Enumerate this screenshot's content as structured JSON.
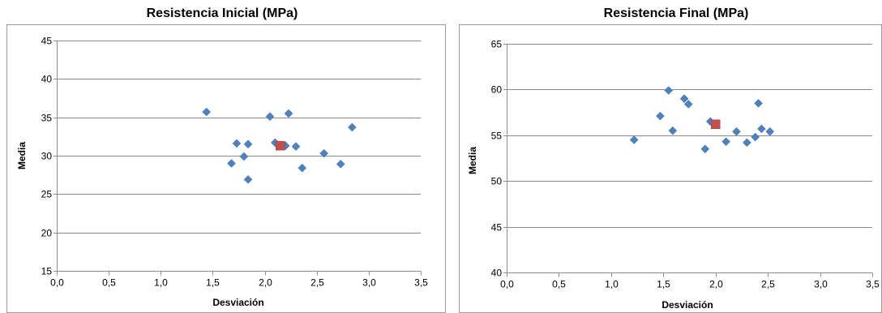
{
  "chart_data": [
    {
      "type": "scatter",
      "title": "Resistencia Inicial (MPa)",
      "xlabel": "Desviación",
      "ylabel": "Media",
      "xlim": [
        0,
        3.5
      ],
      "ylim": [
        15,
        45
      ],
      "xticks": [
        0,
        0.5,
        1.0,
        1.5,
        2.0,
        2.5,
        3.0,
        3.5
      ],
      "yticks": [
        15,
        20,
        25,
        30,
        35,
        40,
        45
      ],
      "xtick_labels": [
        "0,0",
        "0,5",
        "1,0",
        "1,5",
        "2,0",
        "2,5",
        "3,0",
        "3,5"
      ],
      "ytick_labels": [
        "15",
        "20",
        "25",
        "30",
        "35",
        "40",
        "45"
      ],
      "grid": true,
      "series": [
        {
          "marker": "diamond",
          "color": "#4f81bd",
          "points": [
            [
              1.44,
              35.7
            ],
            [
              1.73,
              31.6
            ],
            [
              1.84,
              31.5
            ],
            [
              1.68,
              29.0
            ],
            [
              1.8,
              29.9
            ],
            [
              1.84,
              26.9
            ],
            [
              2.05,
              35.1
            ],
            [
              2.1,
              31.7
            ],
            [
              2.23,
              35.5
            ],
            [
              2.2,
              31.3
            ],
            [
              2.3,
              31.2
            ],
            [
              2.36,
              28.4
            ],
            [
              2.57,
              30.3
            ],
            [
              2.73,
              28.9
            ],
            [
              2.84,
              33.7
            ]
          ]
        },
        {
          "marker": "square",
          "color": "#c0504d",
          "points": [
            [
              2.15,
              31.3
            ]
          ]
        }
      ]
    },
    {
      "type": "scatter",
      "title": "Resistencia Final (MPa)",
      "xlabel": "Desviación",
      "ylabel": "Media",
      "xlim": [
        0,
        3.5
      ],
      "ylim": [
        40,
        65
      ],
      "xticks": [
        0,
        0.5,
        1.0,
        1.5,
        2.0,
        2.5,
        3.0,
        3.5
      ],
      "yticks": [
        40,
        45,
        50,
        55,
        60,
        65
      ],
      "xtick_labels": [
        "0,0",
        "0,5",
        "1,0",
        "1,5",
        "2,0",
        "2,5",
        "3,0",
        "3,5"
      ],
      "ytick_labels": [
        "40",
        "45",
        "50",
        "55",
        "60",
        "65"
      ],
      "grid": true,
      "series": [
        {
          "marker": "diamond",
          "color": "#4f81bd",
          "points": [
            [
              1.22,
              54.5
            ],
            [
              1.47,
              57.1
            ],
            [
              1.55,
              59.9
            ],
            [
              1.59,
              55.5
            ],
            [
              1.7,
              59.0
            ],
            [
              1.74,
              58.4
            ],
            [
              1.9,
              53.5
            ],
            [
              1.95,
              56.5
            ],
            [
              2.1,
              54.3
            ],
            [
              2.2,
              55.4
            ],
            [
              2.3,
              54.2
            ],
            [
              2.38,
              54.8
            ],
            [
              2.41,
              58.5
            ],
            [
              2.44,
              55.7
            ],
            [
              2.52,
              55.4
            ]
          ]
        },
        {
          "marker": "square",
          "color": "#c0504d",
          "points": [
            [
              2.0,
              56.2
            ]
          ]
        }
      ]
    }
  ]
}
